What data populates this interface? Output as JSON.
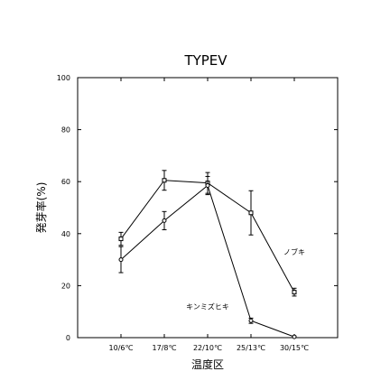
{
  "chart_data": {
    "type": "line",
    "title": "TYPEⅤ",
    "xlabel": "温度区",
    "ylabel": "発芽率(%)",
    "categories": [
      "10/6℃",
      "17/8℃",
      "22/10℃",
      "25/13℃",
      "30/15℃"
    ],
    "ylim": [
      0,
      100
    ],
    "yticks": [
      0,
      20,
      40,
      60,
      80,
      100
    ],
    "grid": false,
    "legend": "none",
    "series": [
      {
        "name": "ノブキ",
        "marker": "square",
        "values": [
          38,
          60.5,
          59.5,
          48,
          17.5
        ],
        "errors": [
          2.5,
          3.8,
          4,
          8.5,
          1.5
        ]
      },
      {
        "name": "キンミズヒキ",
        "marker": "circle",
        "values": [
          30,
          45,
          58.5,
          6.5,
          0.3
        ],
        "errors": [
          5,
          3.5,
          3.5,
          1,
          0.3
        ]
      }
    ],
    "annotations": [
      {
        "text": "ノブキ",
        "category_index": 4,
        "y": 32
      },
      {
        "text": "キンミズヒキ",
        "category_index": 2,
        "y": 11
      }
    ]
  }
}
